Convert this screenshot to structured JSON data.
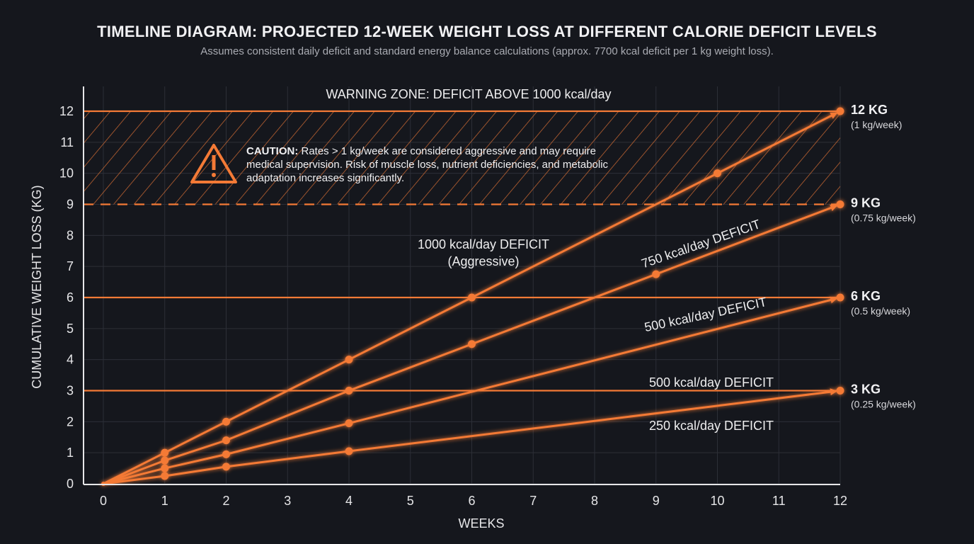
{
  "chart_data": {
    "type": "line",
    "title": "TIMELINE DIAGRAM: PROJECTED 12-WEEK WEIGHT LOSS AT DIFFERENT CALORIE DEFICIT LEVELS",
    "subtitle": "Assumes consistent daily deficit and standard energy balance calculations (approx. 7700 kcal deficit per 1 kg weight loss).",
    "xlabel": "WEEKS",
    "ylabel": "CUMULATIVE WEIGHT LOSS (KG)",
    "xlim": [
      0,
      12
    ],
    "ylim": [
      0,
      12
    ],
    "xticks": [
      "0",
      "1",
      "2",
      "3",
      "4",
      "5",
      "6",
      "7",
      "8",
      "9",
      "10",
      "11",
      "12"
    ],
    "yticks": [
      "0",
      "1",
      "2",
      "3",
      "4",
      "5",
      "6",
      "7",
      "8",
      "9",
      "10",
      "11",
      "12"
    ],
    "grid": true,
    "accent_color": "#f47a36",
    "series": [
      {
        "name": "1000 kcal/day DEFICIT",
        "points": [
          [
            0,
            0
          ],
          [
            1,
            1
          ],
          [
            2,
            2
          ],
          [
            4,
            4
          ],
          [
            6,
            6
          ],
          [
            10,
            10
          ],
          [
            12,
            12
          ]
        ]
      },
      {
        "name": "750 kcal/day DEFICIT",
        "points": [
          [
            0,
            0
          ],
          [
            1,
            0.75
          ],
          [
            2,
            1.4
          ],
          [
            4,
            3
          ],
          [
            6,
            4.5
          ],
          [
            9,
            6.75
          ],
          [
            12,
            9
          ]
        ]
      },
      {
        "name": "500 kcal/day DEFICIT",
        "points": [
          [
            0,
            0
          ],
          [
            1,
            0.5
          ],
          [
            2,
            0.95
          ],
          [
            4,
            1.95
          ],
          [
            12,
            6
          ]
        ]
      },
      {
        "name": "250 kcal/day DEFICIT",
        "points": [
          [
            0,
            0
          ],
          [
            1,
            0.25
          ],
          [
            2,
            0.55
          ],
          [
            4,
            1.05
          ],
          [
            12,
            3
          ]
        ]
      }
    ],
    "reference_lines": [
      {
        "y": 12,
        "style": "solid"
      },
      {
        "y": 9,
        "style": "dashed"
      },
      {
        "y": 6,
        "style": "solid"
      },
      {
        "y": 3,
        "style": "solid"
      }
    ],
    "warning_zone": {
      "y_range": [
        9,
        12
      ],
      "label": "WARNING ZONE: DEFICIT ABOVE 1000 kcal/day"
    },
    "caution": {
      "lead": "CAUTION:",
      "text": "Rates > 1 kg/week are considered aggressive and may require medical supervision. Risk of muscle loss, nutrient deficiencies, and metabolic adaptation increases significantly."
    },
    "line_labels": [
      {
        "line1": "1000 kcal/day DEFICIT",
        "line2": "(Aggressive)"
      },
      {
        "line1": "750 kcal/day DEFICIT"
      },
      {
        "line1": "500 kcal/day DEFICIT"
      },
      {
        "line1": "500 kcal/day DEFICIT"
      },
      {
        "line1": "250 kcal/day DEFICIT"
      }
    ],
    "end_labels": [
      {
        "value": "12 KG",
        "rate": "(1 kg/week)",
        "y": 12
      },
      {
        "value": "9 KG",
        "rate": "(0.75 kg/week)",
        "y": 9
      },
      {
        "value": "6 KG",
        "rate": "(0.5 kg/week)",
        "y": 6
      },
      {
        "value": "3 KG",
        "rate": "(0.25 kg/week)",
        "y": 3
      }
    ]
  }
}
